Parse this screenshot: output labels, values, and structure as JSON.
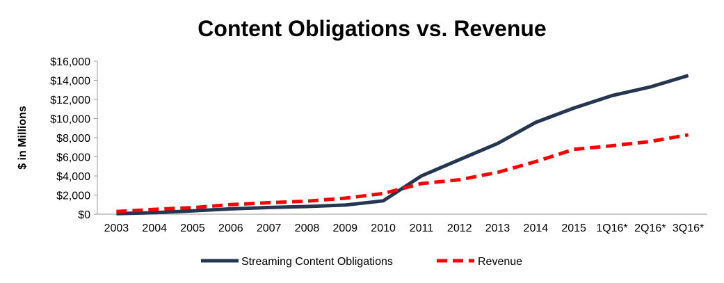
{
  "chart_data": {
    "type": "line",
    "title": "Content Obligations vs. Revenue",
    "ylabel": "$ in Millions",
    "xlabel": "",
    "categories": [
      "2003",
      "2004",
      "2005",
      "2006",
      "2007",
      "2008",
      "2009",
      "2010",
      "2011",
      "2012",
      "2013",
      "2014",
      "2015",
      "1Q16*",
      "2Q16*",
      "3Q16*"
    ],
    "ylim": [
      0,
      16000
    ],
    "yticks": [
      0,
      2000,
      4000,
      6000,
      8000,
      10000,
      12000,
      14000,
      16000
    ],
    "ytick_labels": [
      "$0",
      "$2,000",
      "$4,000",
      "$6,000",
      "$8,000",
      "$10,000",
      "$12,000",
      "$14,000",
      "$16,000"
    ],
    "grid": false,
    "legend_position": "bottom",
    "series": [
      {
        "name": "Streaming Content Obligations",
        "values": [
          50,
          150,
          350,
          550,
          700,
          800,
          950,
          1400,
          4000,
          5700,
          7400,
          9600,
          11100,
          12400,
          13300,
          14500
        ],
        "color": "#253750",
        "style": "solid"
      },
      {
        "name": "Revenue",
        "values": [
          270,
          500,
          680,
          1000,
          1200,
          1360,
          1670,
          2160,
          3200,
          3600,
          4370,
          5500,
          6780,
          7160,
          7600,
          8300
        ],
        "color": "#ff0000",
        "style": "dashed"
      }
    ]
  }
}
